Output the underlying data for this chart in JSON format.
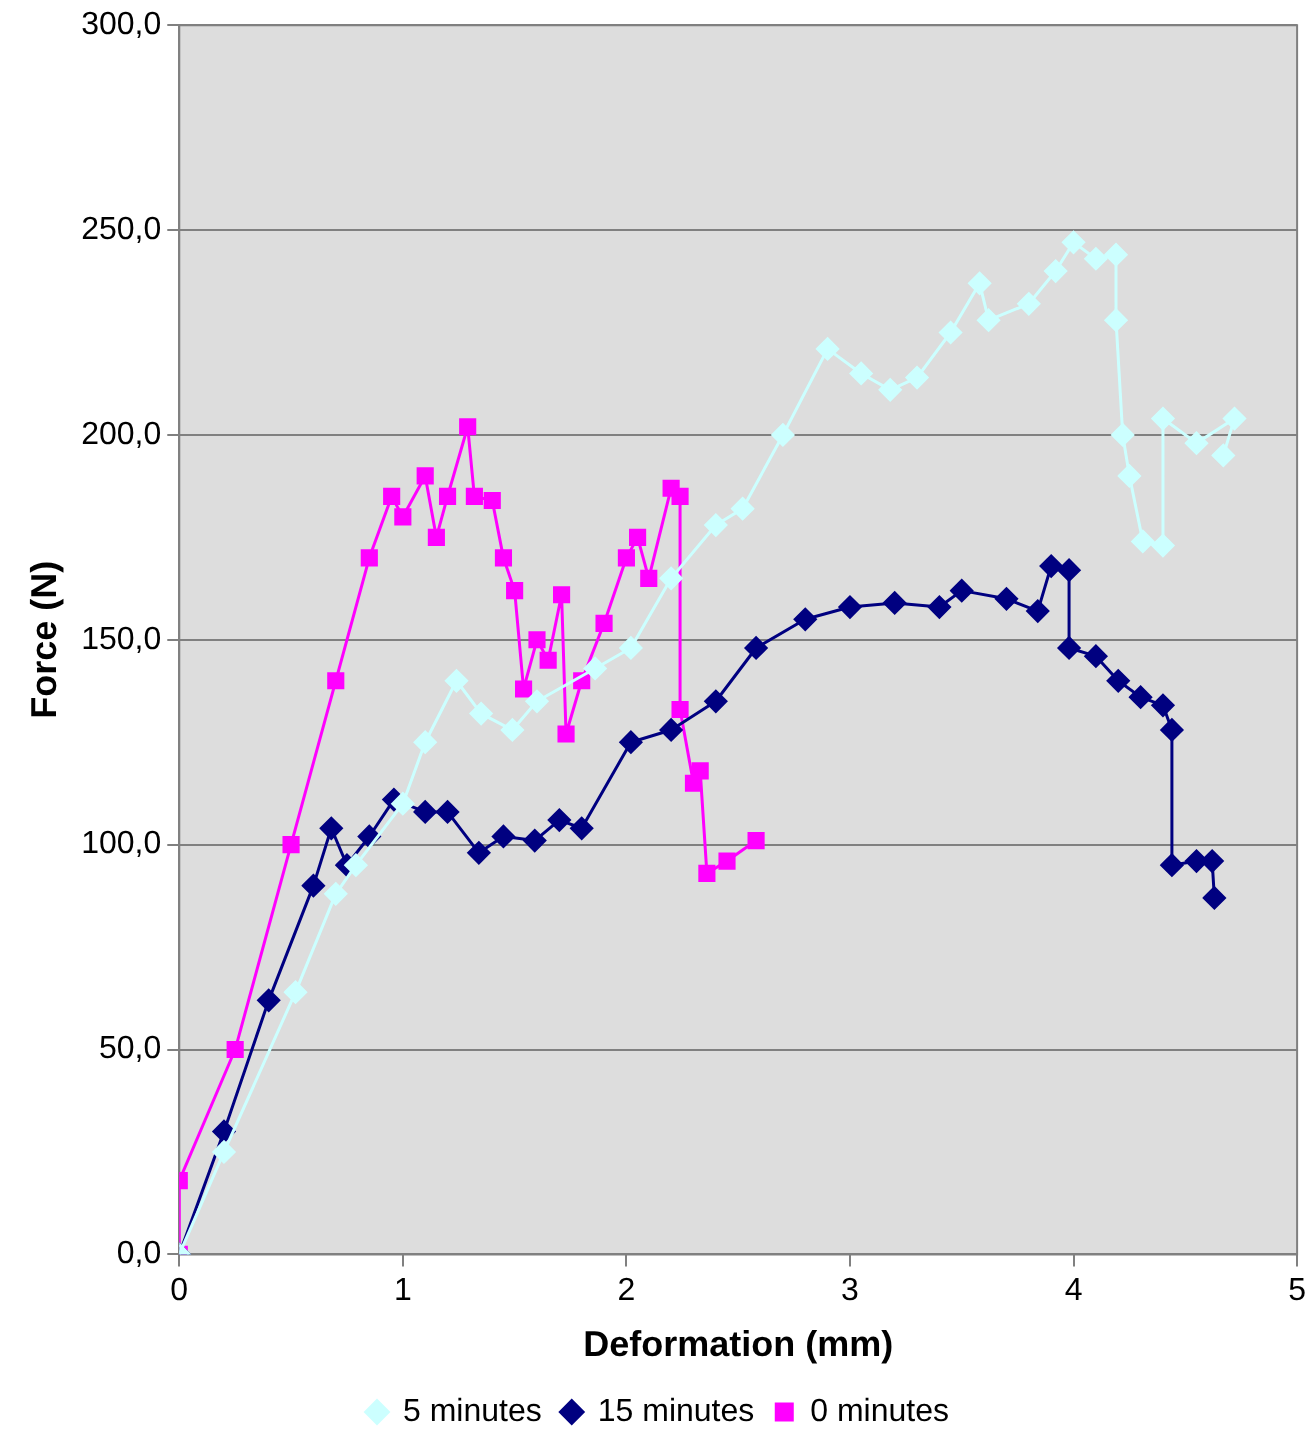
{
  "chart_data": {
    "type": "line",
    "xlabel": "Deformation (mm)",
    "ylabel": "Force (N)",
    "xlim": [
      0,
      5
    ],
    "xticks": [
      0,
      1,
      2,
      3,
      4,
      5
    ],
    "ylim": [
      0,
      300
    ],
    "yticks": [
      {
        "value": 0,
        "label": "0,0"
      },
      {
        "value": 50,
        "label": "50,0"
      },
      {
        "value": 100,
        "label": "100,0"
      },
      {
        "value": 150,
        "label": "150,0"
      },
      {
        "value": 200,
        "label": "200,0"
      },
      {
        "value": 250,
        "label": "250,0"
      },
      {
        "value": 300,
        "label": "300,0"
      }
    ],
    "grid": "y",
    "legend": "bottom",
    "series": [
      {
        "name": "5 minutes",
        "color": "#ccffff",
        "marker": "diamond",
        "x": [
          0,
          0.2,
          0.52,
          0.7,
          0.79,
          1.0,
          1.1,
          1.24,
          1.35,
          1.49,
          1.6,
          1.86,
          2.02,
          2.2,
          2.4,
          2.52,
          2.7,
          2.9,
          3.05,
          3.18,
          3.3,
          3.45,
          3.58,
          3.62,
          3.8,
          3.92,
          4.0,
          4.1,
          4.19,
          4.19,
          4.22,
          4.25,
          4.31,
          4.4,
          4.4,
          4.55,
          4.72,
          4.67
        ],
        "values": [
          0,
          25,
          64,
          88,
          95,
          110,
          125,
          140,
          132,
          128,
          135,
          143,
          148,
          165,
          178,
          182,
          200,
          221,
          215,
          211,
          214,
          225,
          237,
          228,
          232,
          240,
          247,
          243,
          244,
          228,
          200,
          190,
          174,
          173,
          204,
          198,
          204,
          195
        ]
      },
      {
        "name": "15 minutes",
        "color": "#000080",
        "marker": "diamond",
        "x": [
          0,
          0.2,
          0.4,
          0.6,
          0.68,
          0.75,
          0.85,
          0.96,
          1.1,
          1.2,
          1.34,
          1.45,
          1.59,
          1.7,
          1.8,
          2.02,
          2.2,
          2.4,
          2.58,
          2.8,
          3.0,
          3.2,
          3.4,
          3.5,
          3.7,
          3.84,
          3.9,
          3.98,
          3.98,
          4.1,
          4.2,
          4.3,
          4.4,
          4.44,
          4.44,
          4.55,
          4.62,
          4.63
        ],
        "values": [
          0,
          30,
          62,
          90,
          104,
          95,
          102,
          111,
          108,
          108,
          98,
          102,
          101,
          106,
          104,
          125,
          128,
          135,
          148,
          155,
          158,
          159,
          158,
          162,
          160,
          157,
          168,
          167,
          148,
          146,
          140,
          136,
          134,
          128,
          95,
          96,
          96,
          87
        ]
      },
      {
        "name": "0 minutes",
        "color": "#ff00ff",
        "marker": "square",
        "x": [
          0,
          0,
          0.25,
          0.5,
          0.7,
          0.85,
          0.95,
          1.0,
          1.1,
          1.15,
          1.2,
          1.29,
          1.32,
          1.4,
          1.45,
          1.5,
          1.54,
          1.6,
          1.65,
          1.71,
          1.73,
          1.8,
          1.9,
          2.0,
          2.05,
          2.1,
          2.2,
          2.24,
          2.24,
          2.3,
          2.33,
          2.36,
          2.45,
          2.58
        ],
        "values": [
          0,
          18,
          50,
          100,
          140,
          170,
          185,
          180,
          190,
          175,
          185,
          202,
          185,
          184,
          170,
          162,
          138,
          150,
          145,
          161,
          127,
          140,
          154,
          170,
          175,
          165,
          187,
          185,
          133,
          115,
          118,
          93,
          96,
          101
        ]
      }
    ]
  }
}
